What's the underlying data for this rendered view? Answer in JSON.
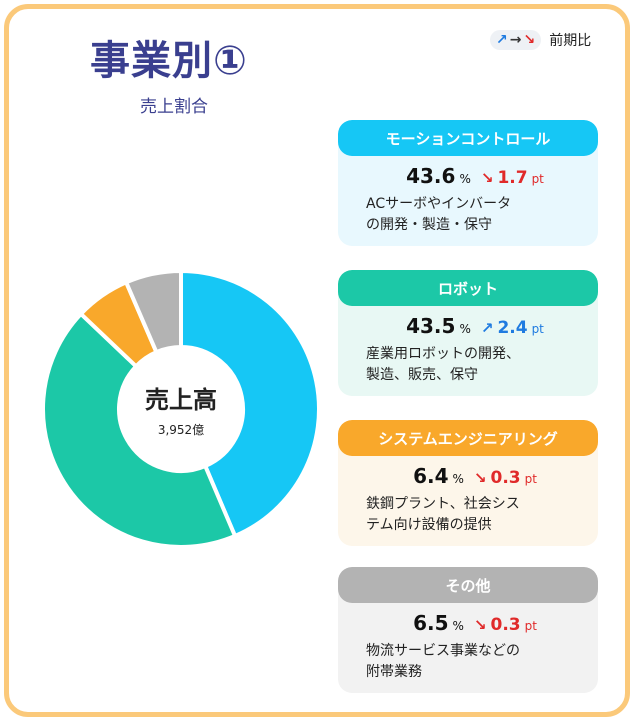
{
  "title": "事業別①",
  "subtitle": "売上割合",
  "legend": {
    "up": "↗",
    "flat": "→",
    "down": "↘",
    "label": "前期比"
  },
  "center": {
    "title": "売上高",
    "value": "3,952億"
  },
  "colors": {
    "frame": "#fbc97a",
    "motion": "#16c7f5",
    "robot": "#1cc8a7",
    "system": "#f9a82b",
    "other": "#b3b3b3",
    "up": "#1f7be0",
    "down": "#e02a2a"
  },
  "segments": [
    {
      "key": "motion",
      "name": "モーションコントロール",
      "value": "43.6",
      "pct": "%",
      "direction": "down",
      "arrow": "↘",
      "change": "1.7",
      "unit": "pt",
      "desc1": "ACサーボやインバータ",
      "desc2": "の開発・製造・保守",
      "color": "#16c7f5",
      "bg": "#e8f8fe"
    },
    {
      "key": "robot",
      "name": "ロボット",
      "value": "43.5",
      "pct": "%",
      "direction": "up",
      "arrow": "↗",
      "change": "2.4",
      "unit": "pt",
      "desc1": "産業用ロボットの開発、",
      "desc2": "製造、販売、保守",
      "color": "#1cc8a7",
      "bg": "#e8f8f4"
    },
    {
      "key": "system",
      "name": "システムエンジニアリング",
      "value": "6.4",
      "pct": "%",
      "direction": "down",
      "arrow": "↘",
      "change": "0.3",
      "unit": "pt",
      "desc1": "鉄鋼プラント、社会シス",
      "desc2": "テム向け設備の提供",
      "color": "#f9a82b",
      "bg": "#fdf6ea"
    },
    {
      "key": "other",
      "name": "その他",
      "value": "6.5",
      "pct": "%",
      "direction": "down",
      "arrow": "↘",
      "change": "0.3",
      "unit": "pt",
      "desc1": "物流サービス事業などの",
      "desc2": "附帯業務",
      "color": "#b3b3b3",
      "bg": "#f2f2f2"
    }
  ],
  "chart_data": {
    "type": "pie",
    "categories": [
      "モーションコントロール",
      "ロボット",
      "システムエンジニアリング",
      "その他"
    ],
    "values": [
      43.6,
      43.5,
      6.4,
      6.5
    ],
    "center_label": "売上高",
    "center_value": "3,952億"
  }
}
